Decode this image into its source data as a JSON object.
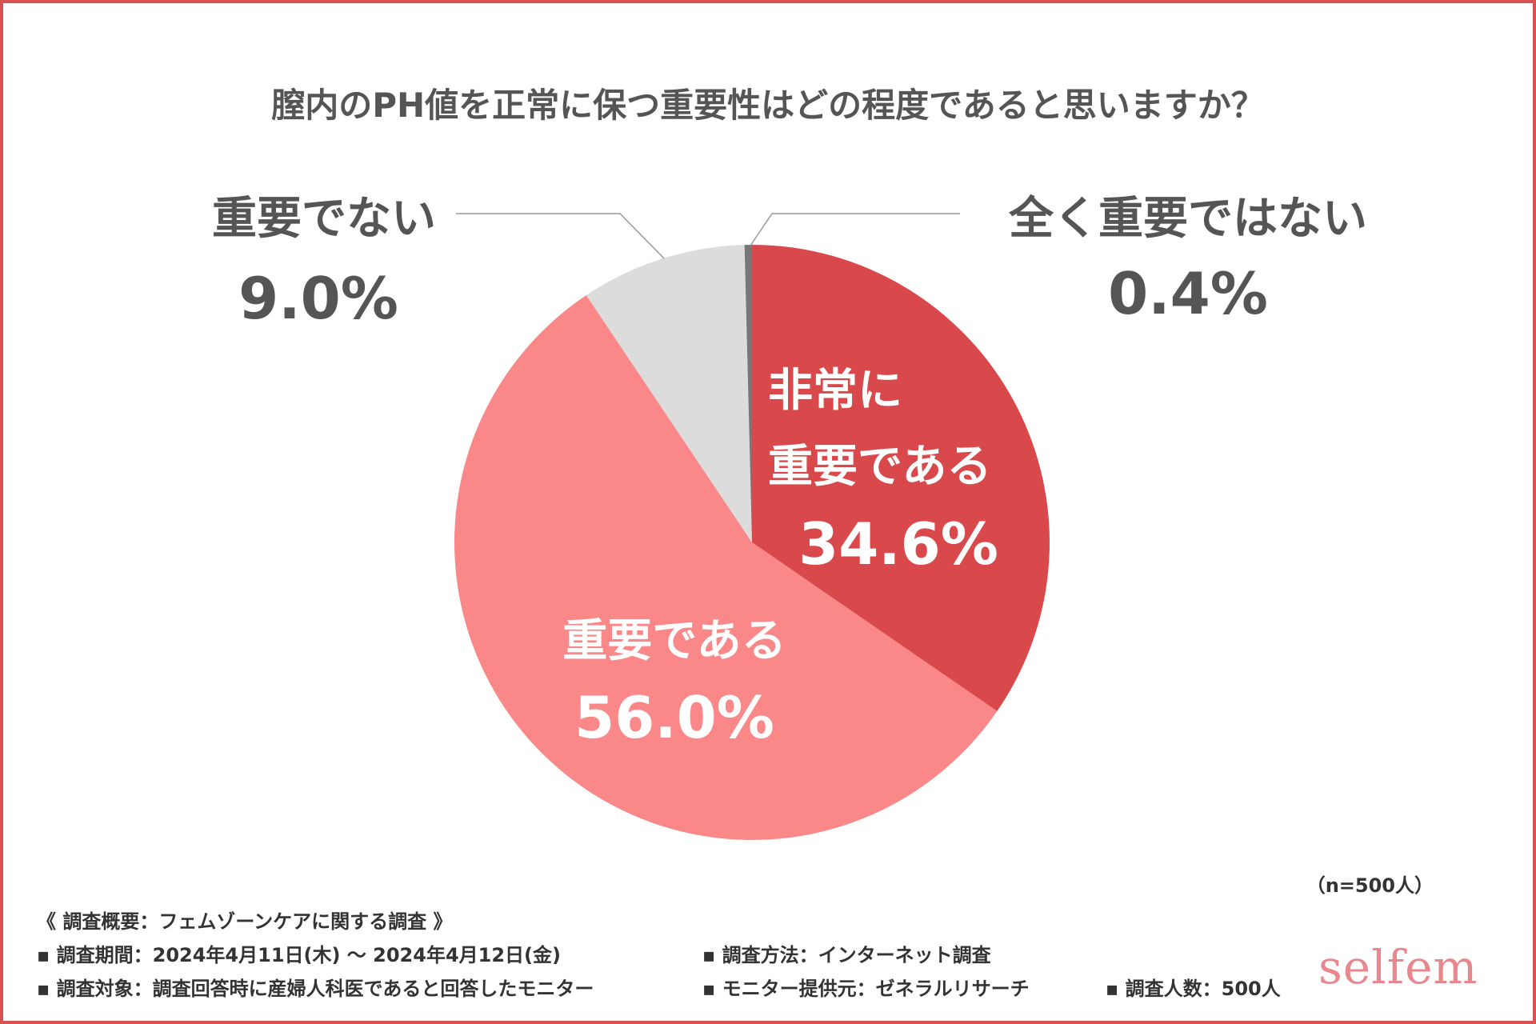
{
  "chart_data": {
    "type": "pie",
    "title": "膣内のPH値を正常に保つ重要性はどの程度であると思いますか？",
    "slices": [
      {
        "label": "非常に重要である",
        "value": 34.6,
        "display": "34.6%",
        "color": "#d9494c"
      },
      {
        "label": "重要である",
        "value": 56.0,
        "display": "56.0%",
        "color": "#fa8888"
      },
      {
        "label": "重要でない",
        "value": 9.0,
        "display": "9.0%",
        "color": "#dcdcdc"
      },
      {
        "label": "全く重要ではない",
        "value": 0.4,
        "display": "0.4%",
        "color": "#777777"
      }
    ],
    "sample_size": "（n=500人）"
  },
  "survey": {
    "overview": "《 調査概要：フェムゾーンケアに関する調査 》",
    "period": "▪ 調査期間：2024年4月11日(木) ～ 2024年4月12日(金)",
    "method": "▪ 調査方法：インターネット調査",
    "target": "▪ 調査対象：調査回答時に産婦人科医であると回答したモニター",
    "provider": "▪ モニター提供元：ゼネラルリサーチ",
    "count": "▪ 調査人数：500人"
  },
  "brand": {
    "logo": "selfem"
  },
  "colors": {
    "frame": "#d95055",
    "text": "#555555",
    "leader": "#999999"
  }
}
